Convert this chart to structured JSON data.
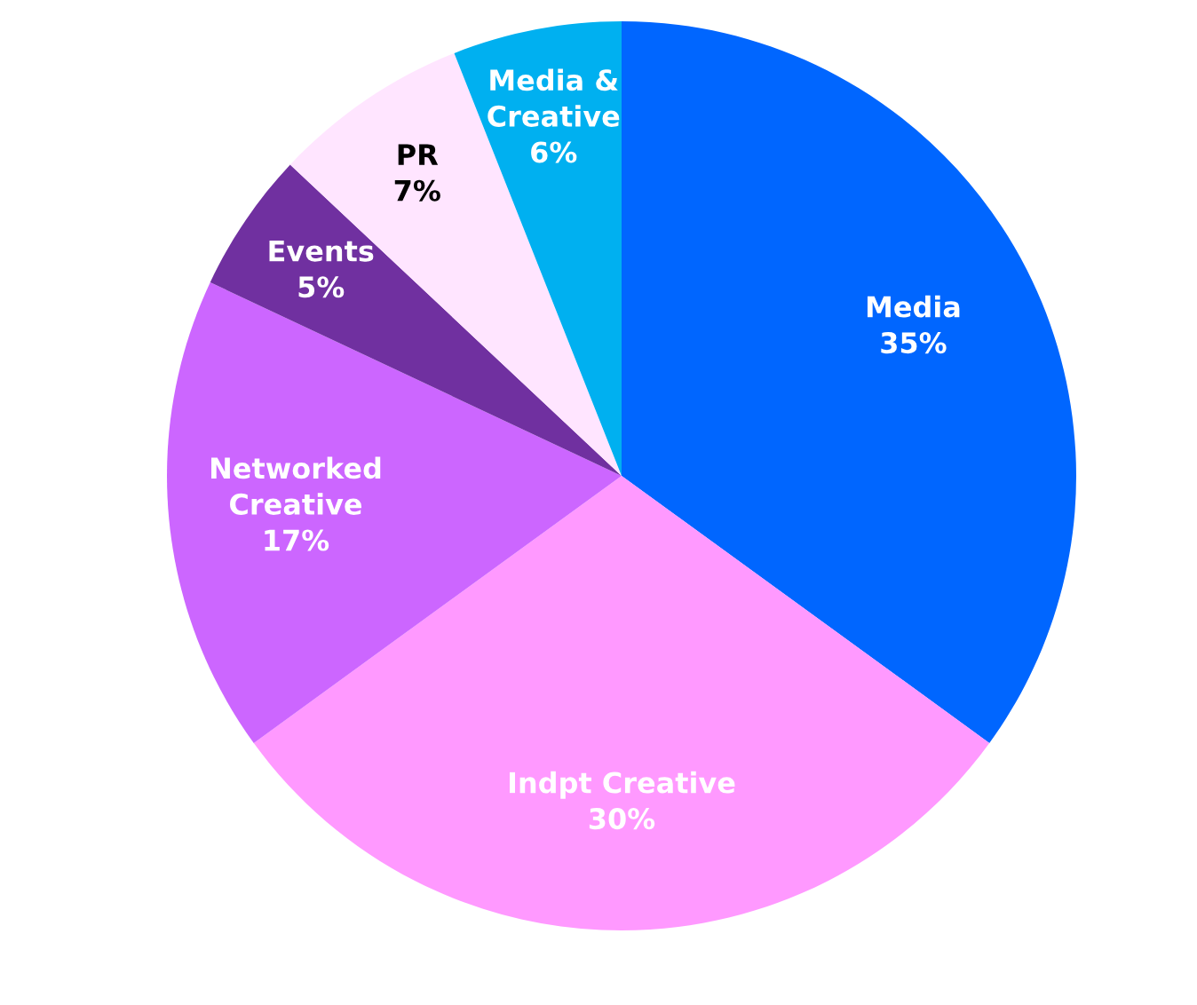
{
  "chart_data": {
    "type": "pie",
    "categories": [
      "Media",
      "Indpt Creative",
      "Networked\nCreative",
      "Events",
      "PR",
      "Media &\nCreative"
    ],
    "values": [
      35,
      30,
      17,
      5,
      7,
      6
    ],
    "colors": [
      "#0066ff",
      "#ff99ff",
      "#cc66ff",
      "#7030a0",
      "#ffe5ff",
      "#00b0f0"
    ],
    "value_labels": [
      "35%",
      "30%",
      "17%",
      "5%",
      "7%",
      "6%"
    ]
  }
}
